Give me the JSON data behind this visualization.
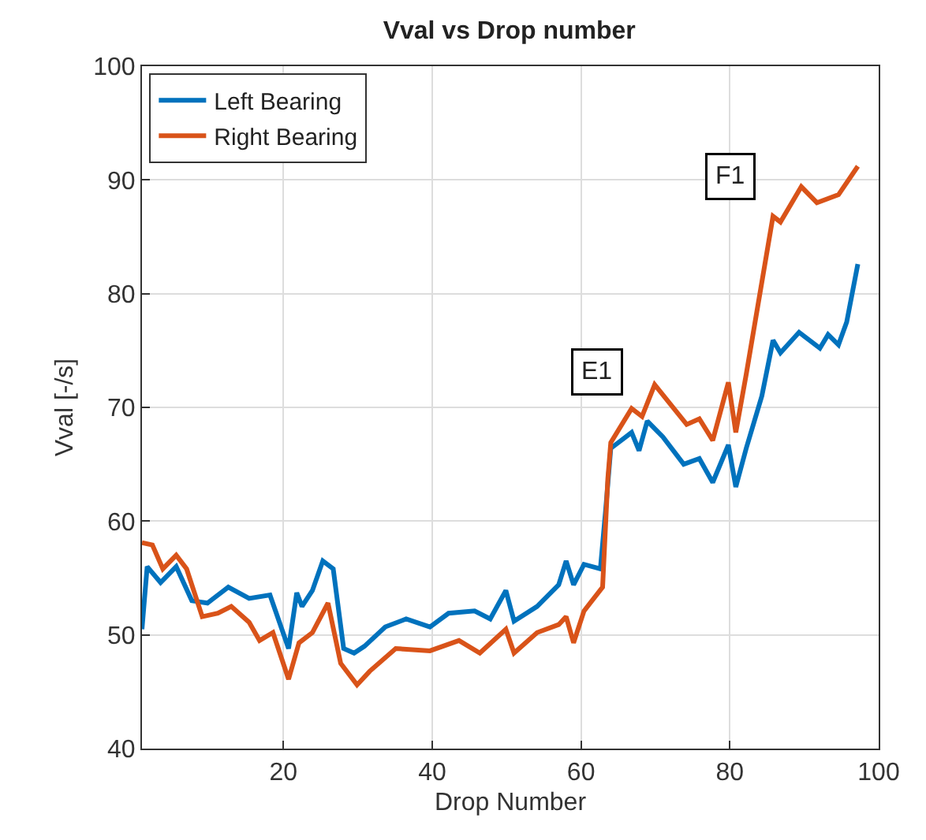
{
  "chart_data": {
    "type": "line",
    "title": "Vval vs Drop number",
    "xlabel": "Drop Number",
    "ylabel": "Vval [-/s]",
    "xlim": [
      1,
      100
    ],
    "xticks": [
      20,
      40,
      60,
      80,
      100
    ],
    "ylim": [
      40,
      100
    ],
    "yticks": [
      40,
      50,
      60,
      70,
      80,
      90,
      100
    ],
    "grid": true,
    "legend": "top left",
    "line_style": "solid",
    "marker": "none",
    "annotations": [
      {
        "text": "E1",
        "x": 62.1,
        "y": 73.1
      },
      {
        "text": "F1",
        "x": 80,
        "y": 90.3
      }
    ],
    "series": [
      {
        "name": "Left Bearing",
        "color": "#0072bd",
        "x": [
          1,
          1.7,
          3.5,
          5.6,
          7.7,
          9.8,
          12.6,
          15.4,
          18.2,
          20.7,
          21.8,
          22.5,
          23.9,
          25.3,
          26.7,
          28.1,
          29.5,
          30.9,
          33.7,
          36.5,
          39.7,
          42.2,
          45.7,
          47.8,
          49.9,
          51,
          54.1,
          57,
          58,
          59,
          60.4,
          62.6,
          63.3,
          64,
          66.8,
          67.8,
          68.9,
          71,
          73.8,
          75.9,
          77.7,
          79.8,
          80.8,
          82.2,
          84.3,
          85.8,
          86.8,
          89.3,
          92.1,
          93.2,
          94.6,
          95.7,
          97.2
        ],
        "values": [
          50.5,
          56,
          54.6,
          56,
          53,
          52.8,
          54.2,
          53.2,
          53.5,
          48.8,
          53.7,
          52.5,
          53.9,
          56.5,
          55.8,
          48.8,
          48.4,
          49,
          50.7,
          51.4,
          50.7,
          51.9,
          52.1,
          51.4,
          53.9,
          51.2,
          52.5,
          54.4,
          56.5,
          54.4,
          56.2,
          55.8,
          60.9,
          66.4,
          67.8,
          66.2,
          68.8,
          67.4,
          65,
          65.5,
          63.4,
          66.7,
          63,
          66.4,
          71,
          75.9,
          74.8,
          76.6,
          75.2,
          76.4,
          75.5,
          77.5,
          82.6
        ]
      },
      {
        "name": "Right Bearing",
        "color": "#d95319",
        "x": [
          1,
          2.4,
          3.8,
          5.6,
          7,
          9.1,
          11.2,
          13,
          15.4,
          16.8,
          18.6,
          20.7,
          22.1,
          23.9,
          26,
          27.7,
          29.9,
          31.6,
          35.1,
          39.7,
          43.6,
          46.4,
          49.9,
          51,
          54.1,
          57,
          58,
          59,
          60.4,
          62.9,
          63.6,
          64,
          66.8,
          68.2,
          69.9,
          74.2,
          75.9,
          77.7,
          79.8,
          80.8,
          82.2,
          85.8,
          86.8,
          89.6,
          91.7,
          94.6,
          97.2
        ],
        "values": [
          58.1,
          57.9,
          55.8,
          57,
          55.8,
          51.6,
          51.9,
          52.5,
          51.1,
          49.5,
          50.2,
          46.1,
          49.3,
          50.2,
          52.8,
          47.5,
          45.6,
          46.8,
          48.8,
          48.6,
          49.5,
          48.4,
          50.5,
          48.4,
          50.2,
          50.9,
          51.6,
          49.3,
          52.1,
          54.2,
          63.7,
          66.9,
          69.9,
          69.2,
          72,
          68.5,
          69,
          67.1,
          72.2,
          67.8,
          72.9,
          86.8,
          86.3,
          89.4,
          88,
          88.7,
          91.2
        ]
      }
    ]
  }
}
